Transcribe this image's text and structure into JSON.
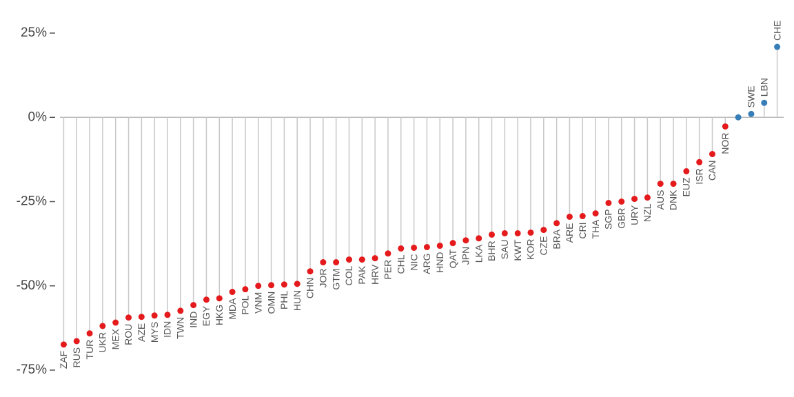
{
  "chart_data": {
    "type": "lollipop",
    "categories": [
      "ZAF",
      "RUS",
      "TUR",
      "UKR",
      "MEX",
      "ROU",
      "AZE",
      "MYS",
      "IDN",
      "TWN",
      "IND",
      "EGY",
      "HKG",
      "MDA",
      "POL",
      "VNM",
      "OMN",
      "PHL",
      "HUN",
      "CHN",
      "JOR",
      "GTM",
      "COL",
      "PAK",
      "HRV",
      "PER",
      "CHL",
      "NIC",
      "ARG",
      "HND",
      "QAT",
      "JPN",
      "LKA",
      "BHR",
      "SAU",
      "KWT",
      "KOR",
      "CZE",
      "BRA",
      "ARE",
      "CRI",
      "THA",
      "SGP",
      "GBR",
      "URY",
      "NZL",
      "AUS",
      "DNK",
      "EUZ",
      "ISR",
      "CAN",
      "NOR",
      null,
      "SWE",
      "LBN",
      "CHE"
    ],
    "values": [
      -67.4,
      -66.4,
      -64.1,
      -61.9,
      -60.9,
      -59.4,
      -59.2,
      -58.8,
      -58.6,
      -57.4,
      -55.7,
      -54.1,
      -53.7,
      -51.8,
      -51.0,
      -50.0,
      -49.8,
      -49.6,
      -49.4,
      -45.7,
      -43.0,
      -43.0,
      -42.2,
      -42.2,
      -41.8,
      -40.4,
      -38.9,
      -38.7,
      -38.5,
      -38.1,
      -37.3,
      -36.5,
      -35.9,
      -34.8,
      -34.4,
      -34.4,
      -34.2,
      -33.4,
      -31.4,
      -29.5,
      -29.3,
      -28.5,
      -25.4,
      -25.0,
      -24.2,
      -23.8,
      -19.7,
      -19.7,
      -16.0,
      -13.3,
      -10.9,
      -2.7,
      0,
      1.0,
      4.3,
      20.9
    ],
    "negative_color": "#e41a1c",
    "positive_color": "#377eb8",
    "ylim": [
      -75,
      25
    ],
    "yticks": [
      {
        "value": -75,
        "label": "-75%"
      },
      {
        "value": -50,
        "label": "-50%"
      },
      {
        "value": -25,
        "label": "-25%"
      },
      {
        "value": 0,
        "label": "0%"
      },
      {
        "value": 25,
        "label": "25%"
      }
    ]
  }
}
